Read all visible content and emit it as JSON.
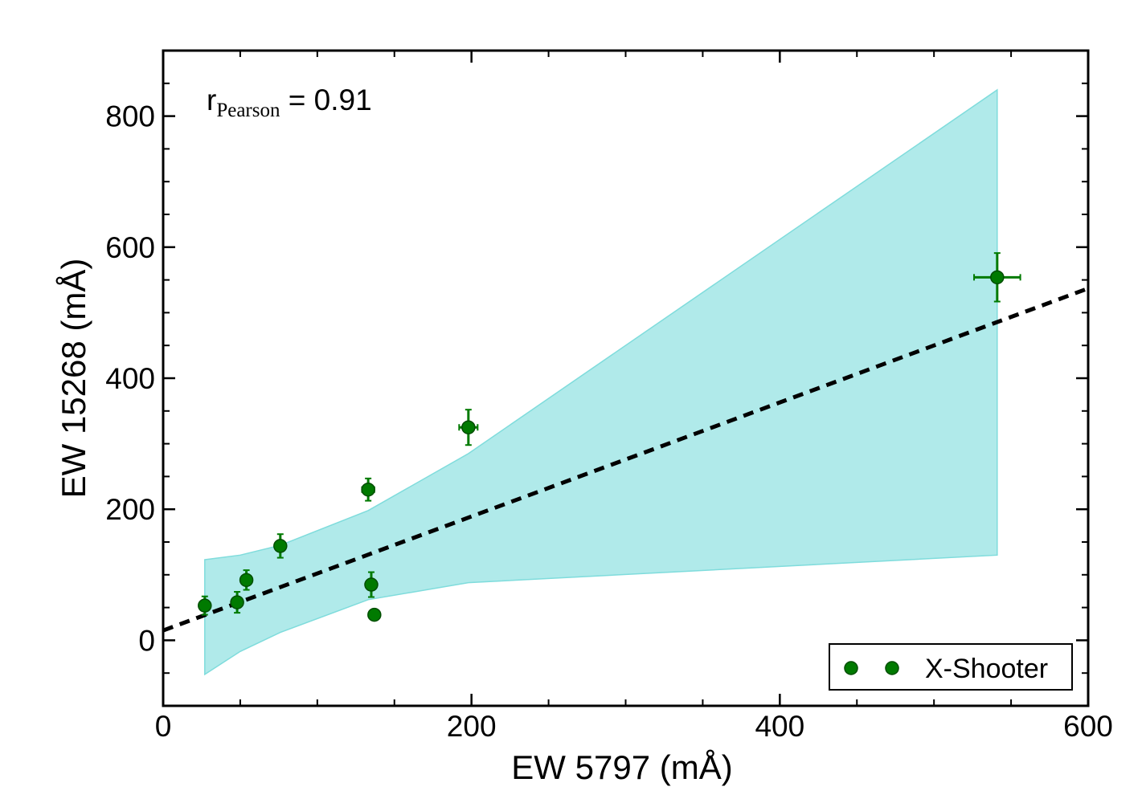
{
  "chart_data": {
    "type": "scatter",
    "xlabel": "EW 5797 (mÅ)",
    "ylabel": "EW 15268 (mÅ)",
    "xlim": [
      0,
      600
    ],
    "ylim": [
      -100,
      900
    ],
    "xticks": [
      0,
      200,
      400,
      600
    ],
    "yticks": [
      0,
      200,
      400,
      600,
      800
    ],
    "x_minor_step": 50,
    "y_minor_step": 50,
    "annotation": {
      "main": "r",
      "sub": "Pearson",
      "rest": " = 0.91"
    },
    "legend": {
      "label": "X-Shooter",
      "position": "bottom-right"
    },
    "colors": {
      "points": "#007a00",
      "point_edge": "#004d00",
      "band_fill": "#b0eaea",
      "band_edge": "#7fdcdc",
      "fit_line": "#000000"
    },
    "series": [
      {
        "name": "X-Shooter",
        "points": [
          {
            "x": 27,
            "y": 53,
            "xerr": 3,
            "yerr": 14
          },
          {
            "x": 48,
            "y": 58,
            "xerr": 3,
            "yerr": 16
          },
          {
            "x": 54,
            "y": 92,
            "xerr": 3,
            "yerr": 15
          },
          {
            "x": 76,
            "y": 144,
            "xerr": 3,
            "yerr": 18
          },
          {
            "x": 133,
            "y": 230,
            "xerr": 4,
            "yerr": 17
          },
          {
            "x": 135,
            "y": 85,
            "xerr": 3,
            "yerr": 19
          },
          {
            "x": 137,
            "y": 39,
            "xerr": 3,
            "yerr": 8
          },
          {
            "x": 198,
            "y": 325,
            "xerr": 6,
            "yerr": 27
          },
          {
            "x": 541,
            "y": 554,
            "xerr": 15,
            "yerr": 37
          }
        ]
      }
    ],
    "fit_line": {
      "slope": 0.87,
      "intercept": 15,
      "style": "dashed"
    },
    "confidence_band": {
      "upper": [
        [
          27,
          123
        ],
        [
          50,
          130
        ],
        [
          76,
          145
        ],
        [
          133,
          198
        ],
        [
          198,
          285
        ],
        [
          541,
          840
        ]
      ],
      "lower": [
        [
          27,
          -52
        ],
        [
          50,
          -17
        ],
        [
          76,
          12
        ],
        [
          133,
          62
        ],
        [
          198,
          88
        ],
        [
          541,
          130
        ]
      ]
    }
  }
}
